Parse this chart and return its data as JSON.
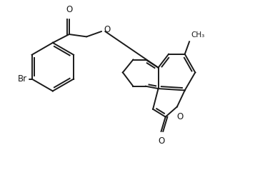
{
  "bg_color": "#ffffff",
  "line_color": "#1a1a1a",
  "line_width": 1.4,
  "font_size": 8.5,
  "figsize": [
    3.64,
    2.38
  ],
  "dpi": 100,
  "xlim": [
    0,
    10.5
  ],
  "ylim": [
    0.5,
    7.5
  ]
}
